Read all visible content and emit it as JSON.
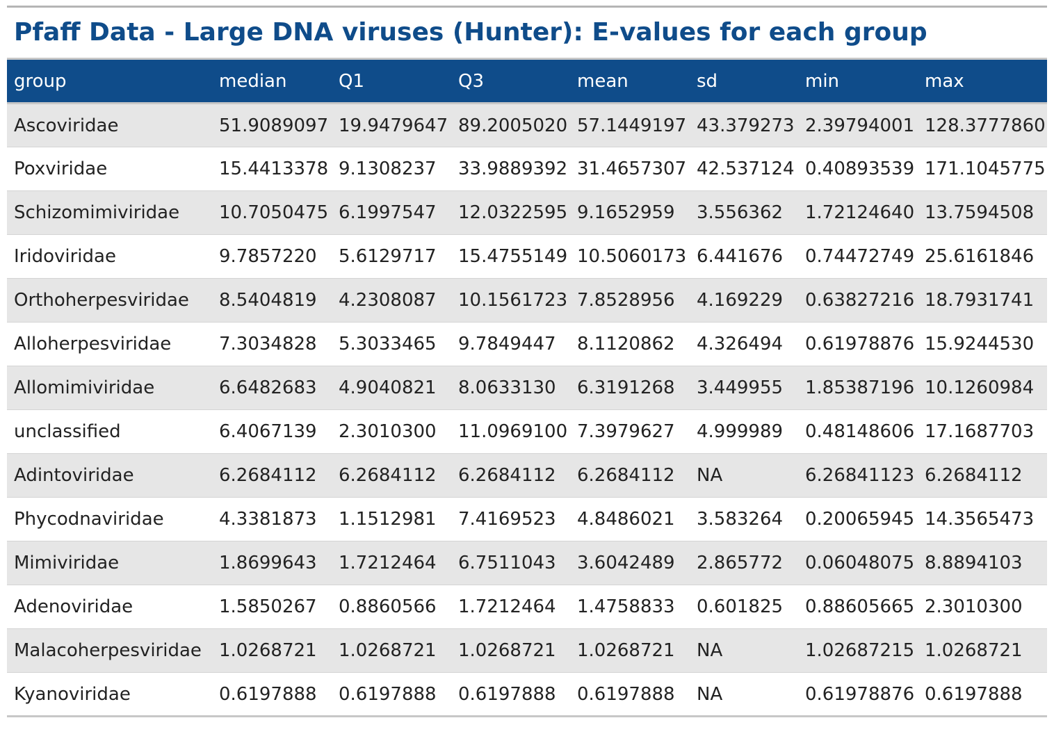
{
  "caption": "Pfaff Data - Large DNA viruses (Hunter): E-values for each group",
  "columns": [
    "group",
    "median",
    "Q1",
    "Q3",
    "mean",
    "sd",
    "min",
    "max"
  ],
  "rows": [
    [
      "Ascoviridae",
      "51.9089097",
      "19.9479647",
      "89.2005020",
      "57.1449197",
      "43.379273",
      "2.39794001",
      "128.3777860"
    ],
    [
      "Poxviridae",
      "15.4413378",
      "9.1308237",
      "33.9889392",
      "31.4657307",
      "42.537124",
      "0.40893539",
      "171.1045775"
    ],
    [
      "Schizomimiviridae",
      "10.7050475",
      "6.1997547",
      "12.0322595",
      "9.1652959",
      "3.556362",
      "1.72124640",
      "13.7594508"
    ],
    [
      "Iridoviridae",
      "9.7857220",
      "5.6129717",
      "15.4755149",
      "10.5060173",
      "6.441676",
      "0.74472749",
      "25.6161846"
    ],
    [
      "Orthoherpesviridae",
      "8.5404819",
      "4.2308087",
      "10.1561723",
      "7.8528956",
      "4.169229",
      "0.63827216",
      "18.7931741"
    ],
    [
      "Alloherpesviridae",
      "7.3034828",
      "5.3033465",
      "9.7849447",
      "8.1120862",
      "4.326494",
      "0.61978876",
      "15.9244530"
    ],
    [
      "Allomimiviridae",
      "6.6482683",
      "4.9040821",
      "8.0633130",
      "6.3191268",
      "3.449955",
      "1.85387196",
      "10.1260984"
    ],
    [
      "unclassified",
      "6.4067139",
      "2.3010300",
      "11.0969100",
      "7.3979627",
      "4.999989",
      "0.48148606",
      "17.1687703"
    ],
    [
      "Adintoviridae",
      "6.2684112",
      "6.2684112",
      "6.2684112",
      "6.2684112",
      "NA",
      "6.26841123",
      "6.2684112"
    ],
    [
      "Phycodnaviridae",
      "4.3381873",
      "1.1512981",
      "7.4169523",
      "4.8486021",
      "3.583264",
      "0.20065945",
      "14.3565473"
    ],
    [
      "Mimiviridae",
      "1.8699643",
      "1.7212464",
      "6.7511043",
      "3.6042489",
      "2.865772",
      "0.06048075",
      "8.8894103"
    ],
    [
      "Adenoviridae",
      "1.5850267",
      "0.8860566",
      "1.7212464",
      "1.4758833",
      "0.601825",
      "0.88605665",
      "2.3010300"
    ],
    [
      "Malacoherpesviridae",
      "1.0268721",
      "1.0268721",
      "1.0268721",
      "1.0268721",
      "NA",
      "1.02687215",
      "1.0268721"
    ],
    [
      "Kyanoviridae",
      "0.6197888",
      "0.6197888",
      "0.6197888",
      "0.6197888",
      "NA",
      "0.61978876",
      "0.6197888"
    ]
  ]
}
